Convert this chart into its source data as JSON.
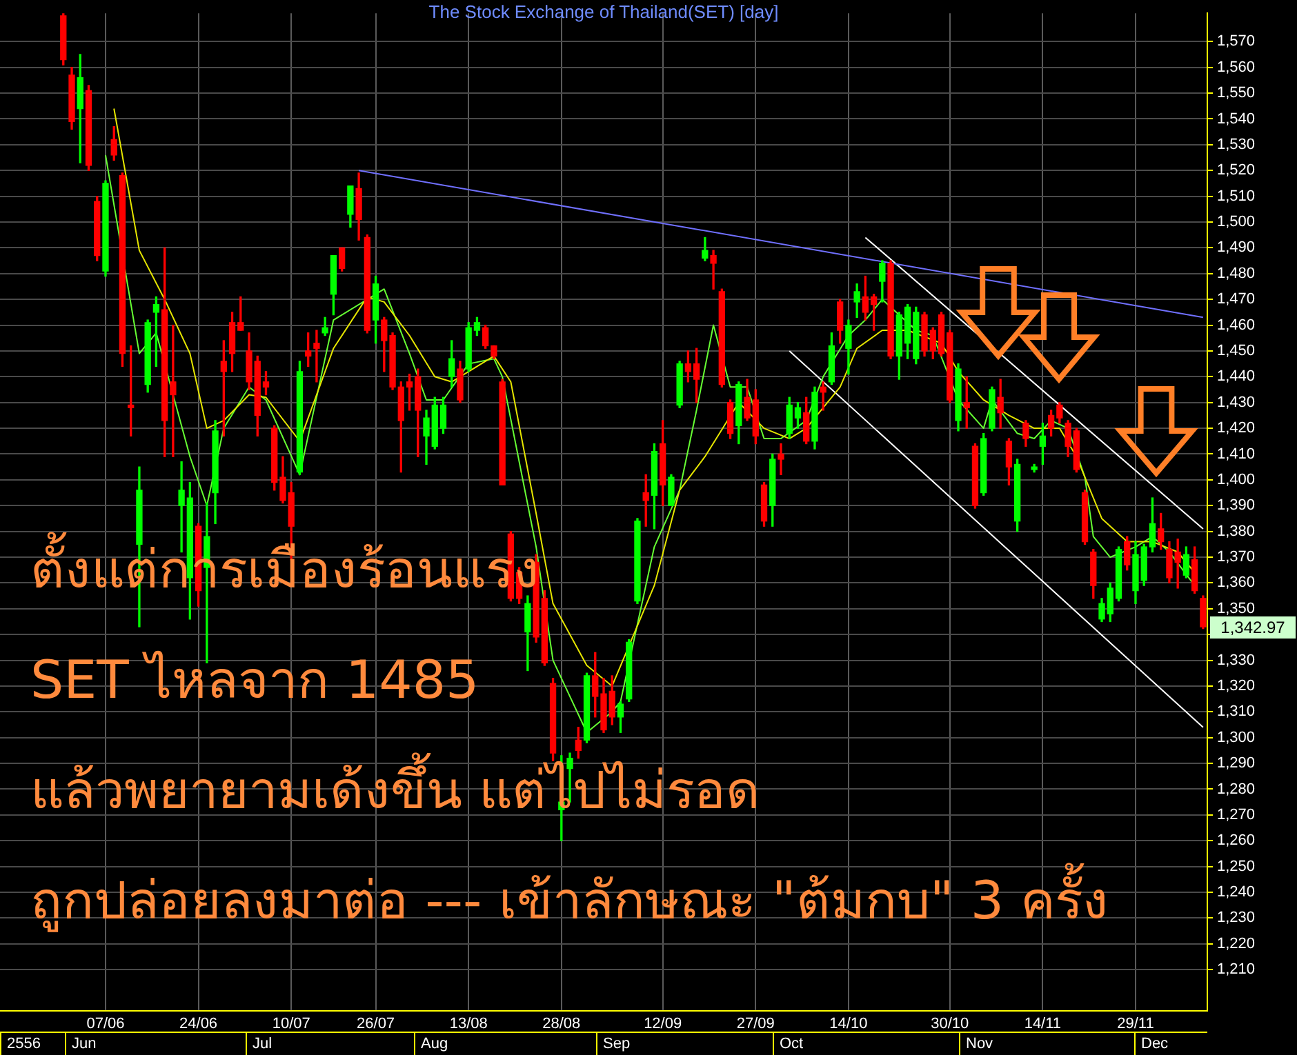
{
  "chart_data": {
    "type": "candlestick",
    "title": "The Stock Exchange of Thailand(SET) [day]",
    "categories": [
      null,
      null,
      null,
      null,
      null,
      null,
      null,
      null,
      null,
      null,
      null,
      null,
      "07/06",
      null,
      null,
      null,
      null,
      null,
      null,
      null,
      null,
      null,
      null,
      "24/06",
      null,
      null,
      null,
      null,
      null,
      null,
      null,
      null,
      null,
      null,
      "10/07",
      null,
      null,
      null,
      null,
      null,
      null,
      null,
      null,
      null,
      "26/07",
      null,
      null,
      null,
      null,
      null,
      null,
      null,
      null,
      null,
      null,
      "13/08",
      null,
      null,
      null,
      null,
      null,
      null,
      null,
      null,
      null,
      null,
      "28/08",
      null,
      null,
      null,
      null,
      null,
      null,
      null,
      null,
      null,
      null,
      null,
      "12/09",
      null,
      null,
      null,
      null,
      null,
      null,
      null,
      null,
      null,
      null,
      "27/09",
      null,
      null,
      null,
      null,
      null,
      null,
      null,
      null,
      null,
      null,
      "14/10",
      null,
      null,
      null,
      null,
      null,
      null,
      null,
      null,
      null,
      null,
      null,
      "30/10",
      null,
      null,
      null,
      null,
      null,
      null,
      null,
      null,
      null,
      null,
      "14/11",
      null,
      null,
      null,
      null,
      null,
      null,
      null,
      null,
      null,
      null,
      "29/11",
      null,
      null,
      null,
      null,
      null,
      null,
      null,
      null
    ],
    "ohlc": [
      null,
      null,
      null,
      null,
      null,
      null,
      null,
      [
        1580,
        1581,
        1561,
        1563
      ],
      [
        1557,
        1560,
        1536,
        1539
      ],
      [
        1544,
        1565,
        1523,
        1556
      ],
      [
        1551,
        1553,
        1520,
        1522
      ],
      [
        1508,
        1510,
        1485,
        1487
      ],
      [
        1481,
        1516,
        1479,
        1515
      ],
      [
        1532,
        1537,
        1524,
        1526
      ],
      [
        1518,
        1519,
        1444,
        1449
      ],
      [
        1429,
        1452,
        1417,
        1428
      ],
      [
        1375,
        1405,
        1343,
        1396
      ],
      [
        1437,
        1462,
        1434,
        1461
      ],
      [
        1465,
        1471,
        1444,
        1468
      ],
      [
        1466,
        1490,
        1409,
        1423
      ],
      [
        1438,
        1460,
        1409,
        1433
      ],
      [
        1390,
        1407,
        1372,
        1396
      ],
      [
        1362,
        1399,
        1346,
        1393
      ],
      [
        1382,
        1383,
        1351,
        1357
      ],
      [
        1366,
        1391,
        1329,
        1378
      ],
      [
        1395,
        1423,
        1383,
        1419
      ],
      [
        1446,
        1454,
        1417,
        1442
      ],
      [
        1461,
        1465,
        1442,
        1449
      ],
      [
        1461,
        1471,
        1458,
        1458
      ],
      [
        1450,
        1457,
        1435,
        1438
      ],
      [
        1446,
        1448,
        1417,
        1425
      ],
      [
        1438,
        1442,
        1433,
        1436
      ],
      [
        1420,
        1421,
        1396,
        1399
      ],
      [
        1401,
        1409,
        1391,
        1392
      ],
      [
        1395,
        1399,
        1369,
        1382
      ],
      [
        1403,
        1446,
        1402,
        1442
      ],
      [
        1450,
        1457,
        1444,
        1448
      ],
      [
        1453,
        1458,
        1438,
        1451
      ],
      [
        1457,
        1463,
        1456,
        1459
      ],
      [
        1472,
        1487,
        1464,
        1487
      ],
      [
        1490,
        1490,
        1481,
        1482
      ],
      [
        1503,
        1514,
        1498,
        1514
      ],
      [
        1513,
        1519,
        1493,
        1501
      ],
      [
        1494,
        1495,
        1457,
        1458
      ],
      [
        1462,
        1479,
        1453,
        1476
      ],
      [
        1462,
        1463,
        1442,
        1454
      ],
      [
        1456,
        1457,
        1435,
        1436
      ],
      [
        1436,
        1438,
        1403,
        1423
      ],
      [
        1438,
        1441,
        1427,
        1436
      ],
      [
        1440,
        1443,
        1409,
        1427
      ],
      [
        1417,
        1427,
        1406,
        1424
      ],
      [
        1413,
        1432,
        1412,
        1429
      ],
      [
        1420,
        1432,
        1418,
        1429
      ],
      [
        1440,
        1454,
        1436,
        1447
      ],
      [
        1443,
        1446,
        1430,
        1431
      ],
      [
        1443,
        1461,
        1442,
        1459
      ],
      [
        1458,
        1463,
        1456,
        1461
      ],
      [
        1459,
        1460,
        1451,
        1452
      ],
      [
        1452,
        1452,
        1447,
        1448
      ],
      [
        1438,
        1439,
        1398,
        1398
      ],
      [
        1379,
        1380,
        1353,
        1354
      ],
      [
        1364,
        1366,
        1352,
        1354
      ],
      [
        1341,
        1355,
        1326,
        1352
      ],
      [
        1368,
        1371,
        1337,
        1339
      ],
      [
        1354,
        1357,
        1328,
        1329
      ],
      [
        1321,
        1323,
        1291,
        1294
      ],
      [
        1272,
        1293,
        1260,
        1275
      ],
      [
        1288,
        1294,
        1275,
        1292
      ],
      [
        1299,
        1304,
        1292,
        1295
      ],
      [
        1299,
        1325,
        1298,
        1324
      ],
      [
        1324,
        1333,
        1308,
        1316
      ],
      [
        1317,
        1323,
        1302,
        1303
      ],
      [
        1318,
        1324,
        1305,
        1308
      ],
      [
        1308,
        1314,
        1302,
        1313
      ],
      [
        1315,
        1338,
        1314,
        1337
      ],
      [
        1353,
        1385,
        1352,
        1384
      ],
      [
        1395,
        1402,
        1382,
        1392
      ],
      [
        1394,
        1414,
        1381,
        1411
      ],
      [
        1414,
        1423,
        1390,
        1398
      ],
      [
        1390,
        1402,
        1390,
        1401
      ],
      [
        1429,
        1446,
        1428,
        1445
      ],
      [
        1445,
        1450,
        1438,
        1442
      ],
      [
        1445,
        1451,
        1430,
        1439
      ],
      [
        1486,
        1494,
        1485,
        1489
      ],
      [
        1487,
        1489,
        1474,
        1484
      ],
      [
        1473,
        1474,
        1436,
        1437
      ],
      [
        1430,
        1431,
        1416,
        1418
      ],
      [
        1421,
        1438,
        1414,
        1437
      ],
      [
        1432,
        1439,
        1423,
        1424
      ],
      [
        1431,
        1435,
        1414,
        1417
      ],
      [
        1398,
        1399,
        1382,
        1384
      ],
      [
        1390,
        1410,
        1382,
        1408
      ],
      [
        1410,
        1414,
        1402,
        1408
      ],
      [
        1418,
        1432,
        1416,
        1429
      ],
      [
        1424,
        1430,
        1420,
        1428
      ],
      [
        1426,
        1432,
        1414,
        1415
      ],
      [
        1415,
        1436,
        1412,
        1434
      ],
      [
        1436,
        1438,
        1427,
        1434
      ],
      [
        1438,
        1457,
        1437,
        1452
      ],
      [
        1469,
        1470,
        1453,
        1458
      ],
      [
        1451,
        1462,
        1441,
        1460
      ],
      [
        1469,
        1476,
        1463,
        1473
      ],
      [
        1471,
        1479,
        1462,
        1465
      ],
      [
        1471,
        1472,
        1458,
        1468
      ],
      [
        1477,
        1485,
        1469,
        1484
      ],
      [
        1484,
        1485,
        1447,
        1448
      ],
      [
        1448,
        1465,
        1439,
        1464
      ],
      [
        1453,
        1468,
        1447,
        1467
      ],
      [
        1447,
        1467,
        1445,
        1465
      ],
      [
        1464,
        1465,
        1448,
        1450
      ],
      [
        1458,
        1459,
        1447,
        1450
      ],
      [
        1464,
        1465,
        1448,
        1449
      ],
      [
        1457,
        1458,
        1430,
        1431
      ],
      [
        1423,
        1445,
        1419,
        1443
      ],
      [
        1430,
        1440,
        1420,
        1428
      ],
      [
        1413,
        1414,
        1389,
        1390
      ],
      [
        1395,
        1418,
        1394,
        1416
      ],
      [
        1420,
        1436,
        1419,
        1435
      ],
      [
        1432,
        1439,
        1420,
        1426
      ],
      [
        1415,
        1416,
        1398,
        1405
      ],
      [
        1384,
        1408,
        1380,
        1406
      ],
      [
        1422,
        1423,
        1413,
        1416
      ],
      [
        1404,
        1406,
        1403,
        1405
      ],
      [
        1413,
        1422,
        1406,
        1417
      ],
      [
        1425,
        1427,
        1417,
        1420
      ],
      [
        1429,
        1430,
        1422,
        1424
      ],
      [
        1422,
        1423,
        1409,
        1413
      ],
      [
        1419,
        1420,
        1403,
        1404
      ],
      [
        1395,
        1396,
        1375,
        1376
      ],
      [
        1372,
        1373,
        1354,
        1359
      ],
      [
        1346,
        1354,
        1345,
        1352
      ],
      [
        1348,
        1360,
        1345,
        1358
      ],
      [
        1354,
        1374,
        1353,
        1373
      ],
      [
        1376,
        1378,
        1365,
        1367
      ],
      [
        1357,
        1376,
        1352,
        1371
      ],
      [
        1361,
        1375,
        1359,
        1374
      ],
      [
        1374,
        1393,
        1372,
        1383
      ],
      [
        1381,
        1387,
        1373,
        1376
      ],
      [
        1373,
        1376,
        1360,
        1362
      ],
      [
        1372,
        1377,
        1358,
        1368
      ],
      [
        1363,
        1374,
        1362,
        1371
      ],
      [
        1369,
        1374,
        1356,
        1357
      ],
      [
        1354,
        1355,
        1342.3,
        1342.97
      ]
    ],
    "colors": [
      null,
      null,
      null,
      null,
      null,
      null,
      null,
      "#ff0000",
      "#ff0000",
      "#00ff00",
      "#ff0000",
      "#ff0000",
      "#00ff00",
      "#ff0000",
      "#ff0000",
      "#ff0000",
      "#00ff00",
      "#00ff00",
      "#00ff00",
      "#ff0000",
      "#ff0000",
      "#00ff00",
      "#00ff00",
      "#ff0000",
      "#00ff00",
      "#00ff00",
      "#ff0000",
      "#ff0000",
      "#ff0000",
      "#ff0000",
      "#ff0000",
      "#ff0000",
      "#ff0000",
      "#ff0000",
      "#ff0000",
      "#00ff00",
      "#ff0000",
      "#ff0000",
      "#00ff00",
      "#00ff00",
      "#ff0000",
      "#00ff00",
      "#ff0000",
      "#ff0000",
      "#00ff00",
      "#ff0000",
      "#ff0000",
      "#ff0000",
      "#ff0000",
      "#ff0000",
      "#00ff00",
      "#00ff00",
      "#00ff00",
      "#00ff00",
      "#ff0000",
      "#00ff00",
      "#00ff00",
      "#ff0000",
      "#ff0000",
      "#ff0000",
      "#ff0000",
      "#ff0000",
      "#00ff00",
      "#ff0000",
      "#ff0000",
      "#ff0000",
      "#00ff00",
      "#00ff00",
      "#ff0000",
      "#00ff00",
      "#ff0000",
      "#ff0000",
      "#ff0000",
      "#00ff00",
      "#00ff00",
      "#00ff00",
      "#ff0000",
      "#00ff00",
      "#ff0000",
      "#00ff00",
      "#00ff00",
      "#ff0000",
      "#ff0000",
      "#00ff00",
      "#ff0000",
      "#ff0000",
      "#ff0000",
      "#00ff00",
      "#ff0000",
      "#ff0000",
      "#ff0000",
      "#00ff00",
      "#ff0000",
      "#00ff00",
      "#00ff00",
      "#ff0000",
      "#00ff00",
      "#ff0000",
      "#00ff00",
      "#ff0000",
      "#00ff00",
      "#00ff00",
      "#ff0000",
      "#ff0000",
      "#00ff00",
      "#ff0000",
      "#00ff00",
      "#00ff00",
      "#00ff00",
      "#ff0000",
      "#ff0000",
      "#ff0000",
      "#ff0000",
      "#00ff00",
      "#ff0000",
      "#ff0000",
      "#00ff00",
      "#00ff00",
      "#ff0000",
      "#ff0000",
      "#00ff00",
      "#ff0000",
      "#00ff00",
      "#00ff00",
      "#ff0000",
      "#ff0000",
      "#ff0000",
      "#ff0000",
      "#ff0000",
      "#ff0000",
      "#00ff00",
      "#00ff00",
      "#00ff00",
      "#ff0000",
      "#00ff00",
      "#00ff00",
      "#00ff00",
      "#ff0000",
      "#ff0000",
      "#ff0000",
      "#00ff00",
      "#ff0000",
      "#ff0000"
    ],
    "series": [
      {
        "type": "line",
        "color": "#e6e600",
        "values": [
          null,
          null,
          null,
          null,
          null,
          null,
          null,
          null,
          null,
          null,
          null,
          null,
          null,
          1544,
          null,
          null,
          1489,
          null,
          null,
          1470,
          null,
          null,
          1449,
          null,
          1420,
          null,
          1423,
          null,
          null,
          1433,
          null,
          1432,
          null,
          null,
          null,
          1415,
          null,
          null,
          null,
          1451,
          null,
          null,
          null,
          1471,
          null,
          1469,
          null,
          null,
          1456,
          null,
          null,
          1440,
          null,
          1438,
          null,
          1442,
          null,
          null,
          1448,
          null,
          1438,
          null,
          null,
          1387,
          null,
          1352,
          null,
          null,
          null,
          1328,
          null,
          null,
          1320,
          null,
          null,
          null,
          null,
          1359,
          null,
          null,
          1396,
          null,
          null,
          1409,
          null,
          null,
          null,
          1430,
          null,
          null,
          1420,
          null,
          null,
          1416,
          null,
          1420,
          null,
          null,
          null,
          1436,
          null,
          1451,
          null,
          null,
          1458,
          null,
          null,
          1458,
          null,
          null,
          null,
          1453,
          null,
          1442,
          null,
          null,
          1431,
          null,
          null,
          1425,
          null,
          null,
          1420,
          null,
          null,
          1420,
          null,
          1409,
          null,
          null,
          1385,
          null,
          null,
          1376,
          null,
          null,
          1376,
          null,
          null,
          1372,
          null,
          1364,
          null
        ]
      },
      {
        "type": "line",
        "color": "#66ff33",
        "values": [
          null,
          null,
          null,
          null,
          null,
          null,
          null,
          null,
          null,
          null,
          null,
          null,
          1526,
          null,
          null,
          null,
          1449,
          null,
          1457,
          null,
          null,
          null,
          1409,
          null,
          1390,
          null,
          1420,
          null,
          null,
          1436,
          null,
          1431,
          null,
          null,
          null,
          1402,
          null,
          null,
          null,
          1462,
          null,
          null,
          null,
          null,
          null,
          1474,
          null,
          null,
          1449,
          null,
          1431,
          null,
          1431,
          null,
          null,
          1445,
          null,
          null,
          1447,
          1440,
          null,
          null,
          null,
          1374,
          null,
          1330,
          null,
          null,
          null,
          1302,
          null,
          null,
          1310,
          1314,
          null,
          null,
          null,
          1374,
          null,
          null,
          1396,
          null,
          1427,
          null,
          1460,
          null,
          1436,
          null,
          1436,
          null,
          1416,
          null,
          1416,
          null,
          null,
          1423,
          null,
          1440,
          null,
          null,
          1456,
          null,
          1462,
          null,
          1470,
          null,
          null,
          null,
          1458,
          null,
          1456,
          null,
          null,
          1431,
          null,
          null,
          1420,
          1431,
          null,
          null,
          1418,
          null,
          1416,
          null,
          1423,
          null,
          1420,
          null,
          1401,
          1378,
          null,
          1370,
          null,
          null,
          1374,
          null,
          1378,
          null,
          1372,
          null,
          null,
          1359,
          null
        ]
      },
      {
        "type": "line",
        "color": "#7070ff",
        "values": [
          null,
          null,
          null,
          null,
          null,
          null,
          null,
          null,
          null,
          null,
          null,
          null,
          null,
          null,
          null,
          null,
          null,
          null,
          null,
          null,
          null,
          null,
          null,
          null,
          null,
          null,
          null,
          null,
          null,
          null,
          null,
          null,
          null,
          null,
          null,
          null,
          null,
          null,
          null,
          null,
          null,
          null,
          1520,
          null,
          null,
          null,
          null,
          null,
          null,
          null,
          null,
          null,
          null,
          null,
          null,
          null,
          null,
          null,
          null,
          null,
          null,
          null,
          null,
          null,
          null,
          null,
          null,
          null,
          null,
          null,
          null,
          null,
          null,
          null,
          null,
          null,
          null,
          null,
          null,
          null,
          null,
          null,
          null,
          null,
          null,
          null,
          null,
          null,
          null,
          null,
          null,
          null,
          null,
          null,
          null,
          null,
          null,
          null,
          null,
          null,
          null,
          null,
          null,
          null,
          null,
          null,
          null,
          null,
          null,
          null,
          null,
          null,
          null,
          null,
          null,
          null,
          null,
          null,
          null,
          null,
          null,
          null,
          null,
          null,
          null,
          null,
          null,
          null,
          null,
          null,
          null,
          null,
          null,
          null,
          null,
          null,
          null,
          null,
          null,
          null,
          null,
          null,
          1463
        ]
      },
      {
        "type": "line",
        "color": "#ffffff",
        "values": [
          null,
          null,
          null,
          null,
          null,
          null,
          null,
          null,
          null,
          null,
          null,
          null,
          null,
          null,
          null,
          null,
          null,
          null,
          null,
          null,
          null,
          null,
          null,
          null,
          null,
          null,
          null,
          null,
          null,
          null,
          null,
          null,
          null,
          null,
          null,
          null,
          null,
          null,
          null,
          null,
          null,
          null,
          null,
          null,
          null,
          null,
          null,
          null,
          null,
          null,
          null,
          null,
          null,
          null,
          null,
          null,
          null,
          null,
          null,
          null,
          null,
          null,
          null,
          null,
          null,
          null,
          null,
          null,
          null,
          null,
          null,
          null,
          null,
          null,
          null,
          null,
          null,
          null,
          null,
          null,
          null,
          null,
          null,
          null,
          null,
          null,
          null,
          null,
          null,
          null,
          null,
          null,
          null,
          null,
          null,
          null,
          null,
          null,
          null,
          null,
          null,
          null,
          1494,
          null,
          null,
          null,
          null,
          null,
          null,
          null,
          null,
          null,
          null,
          null,
          null,
          null,
          null,
          null,
          null,
          null,
          null,
          null,
          null,
          null,
          null,
          null,
          null,
          null,
          null,
          null,
          null,
          null,
          null,
          null,
          null,
          null,
          null,
          null,
          null,
          null,
          null,
          null,
          1381
        ]
      },
      {
        "type": "line",
        "color": "#ffffff",
        "values": [
          null,
          null,
          null,
          null,
          null,
          null,
          null,
          null,
          null,
          null,
          null,
          null,
          null,
          null,
          null,
          null,
          null,
          null,
          null,
          null,
          null,
          null,
          null,
          null,
          null,
          null,
          null,
          null,
          null,
          null,
          null,
          null,
          null,
          null,
          null,
          null,
          null,
          null,
          null,
          null,
          null,
          null,
          null,
          null,
          null,
          null,
          null,
          null,
          null,
          null,
          null,
          null,
          null,
          null,
          null,
          null,
          null,
          null,
          null,
          null,
          null,
          null,
          null,
          null,
          null,
          null,
          null,
          null,
          null,
          null,
          null,
          null,
          null,
          null,
          null,
          null,
          null,
          null,
          null,
          null,
          null,
          null,
          null,
          null,
          null,
          null,
          null,
          null,
          null,
          null,
          null,
          null,
          null,
          1450,
          null,
          null,
          null,
          null,
          null,
          null,
          null,
          null,
          null,
          null,
          null,
          null,
          null,
          null,
          null,
          null,
          null,
          null,
          null,
          null,
          null,
          null,
          null,
          null,
          null,
          null,
          null,
          null,
          null,
          null,
          null,
          null,
          null,
          null,
          null,
          null,
          null,
          null,
          null,
          null,
          null,
          null,
          null,
          null,
          null,
          null,
          null,
          null,
          1304
        ]
      }
    ],
    "ylim": [
      1194,
      1581
    ],
    "yticks": [
      {
        "value": 1210,
        "label": "1,210"
      },
      {
        "value": 1220,
        "label": "1,220"
      },
      {
        "value": 1230,
        "label": "1,230"
      },
      {
        "value": 1240,
        "label": "1,240"
      },
      {
        "value": 1250,
        "label": "1,250"
      },
      {
        "value": 1260,
        "label": "1,260"
      },
      {
        "value": 1270,
        "label": "1,270"
      },
      {
        "value": 1280,
        "label": "1,280"
      },
      {
        "value": 1290,
        "label": "1,290"
      },
      {
        "value": 1300,
        "label": "1,300"
      },
      {
        "value": 1310,
        "label": "1,310"
      },
      {
        "value": 1320,
        "label": "1,320"
      },
      {
        "value": 1330,
        "label": "1,330"
      },
      {
        "value": 1340,
        "label": null
      },
      {
        "value": 1350,
        "label": "1,350"
      },
      {
        "value": 1360,
        "label": "1,360"
      },
      {
        "value": 1370,
        "label": "1,370"
      },
      {
        "value": 1380,
        "label": "1,380"
      },
      {
        "value": 1390,
        "label": "1,390"
      },
      {
        "value": 1400,
        "label": "1,400"
      },
      {
        "value": 1410,
        "label": "1,410"
      },
      {
        "value": 1420,
        "label": "1,420"
      },
      {
        "value": 1430,
        "label": "1,430"
      },
      {
        "value": 1440,
        "label": "1,440"
      },
      {
        "value": 1450,
        "label": "1,450"
      },
      {
        "value": 1460,
        "label": "1,460"
      },
      {
        "value": 1470,
        "label": "1,470"
      },
      {
        "value": 1480,
        "label": "1,480"
      },
      {
        "value": 1490,
        "label": "1,490"
      },
      {
        "value": 1500,
        "label": "1,500"
      },
      {
        "value": 1510,
        "label": "1,510"
      },
      {
        "value": 1520,
        "label": "1,520"
      },
      {
        "value": 1530,
        "label": "1,530"
      },
      {
        "value": 1540,
        "label": "1,540"
      },
      {
        "value": 1550,
        "label": "1,550"
      },
      {
        "value": 1560,
        "label": "1,560"
      },
      {
        "value": 1570,
        "label": "1,570"
      }
    ],
    "grid": true,
    "annotations": [
      "ตั้งแต่การเมืองร้อนแรง",
      "SET ไหลจาก 1485",
      "แล้วพยายามเด้งขึ้น แต่ไปไม่รอด",
      "ถูกปล่อยลงมาต่อ --- เข้าลักษณะ \"ต้มกบ\" 3 ครั้ง",
      "1,342.97",
      "2556",
      "Jun",
      "Jul",
      "Aug",
      "Sep",
      "Oct",
      "Nov",
      "Dec"
    ]
  }
}
